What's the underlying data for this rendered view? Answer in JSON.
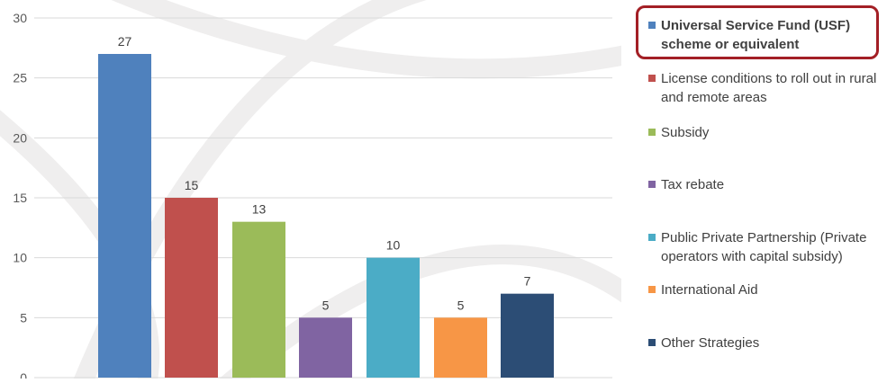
{
  "chart_data": {
    "type": "bar",
    "categories": [
      "Universal Service Fund (USF) scheme or equivalent",
      "License conditions to roll out in rural and remote areas",
      "Subsidy",
      "Tax rebate",
      "Public Private Partnership (Private operators with capital subsidy)",
      "International Aid",
      "Other Strategies"
    ],
    "values": [
      27,
      15,
      13,
      5,
      10,
      5,
      7
    ],
    "colors": [
      "#4f81bd",
      "#c0504d",
      "#9bbb59",
      "#8064a2",
      "#4bacc6",
      "#f79646",
      "#2c4d75"
    ],
    "ylim": [
      0,
      30
    ],
    "yticks": [
      0,
      5,
      10,
      15,
      20,
      25,
      30
    ],
    "grid": true,
    "legend_position": "right",
    "highlighted_legend_index": 0,
    "title": "",
    "xlabel": "",
    "ylabel": ""
  }
}
